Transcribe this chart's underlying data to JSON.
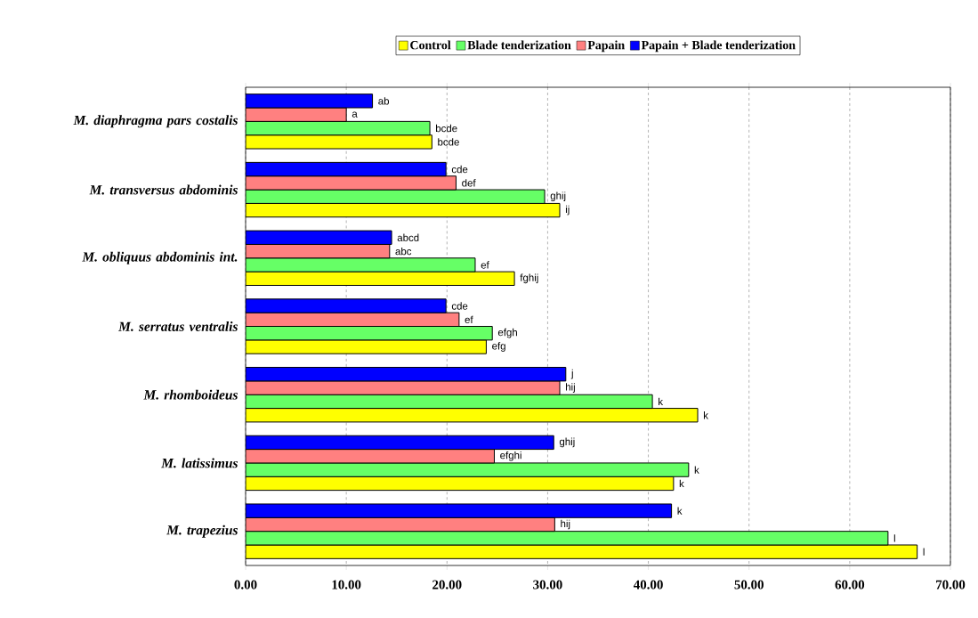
{
  "chart_data": {
    "type": "bar",
    "orientation": "horizontal",
    "categories": [
      "M. diaphragma pars costalis",
      "M. transversus abdominis",
      "M. obliquus abdominis int.",
      "M. serratus ventralis",
      "M. rhomboideus",
      "M. latissimus",
      "M. trapezius"
    ],
    "series": [
      {
        "name": "Control",
        "color": "#ffff00",
        "values": [
          18.5,
          31.2,
          26.7,
          23.9,
          44.9,
          42.5,
          66.7
        ],
        "value_labels": [
          "bcde",
          "ij",
          "fghij",
          "efg",
          "k",
          "k",
          "l"
        ]
      },
      {
        "name": "Blade tenderization",
        "color": "#66ff66",
        "values": [
          18.3,
          29.7,
          22.8,
          24.5,
          40.4,
          44.0,
          63.8
        ],
        "value_labels": [
          "bcde",
          "ghij",
          "ef",
          "efgh",
          "k",
          "k",
          "l"
        ]
      },
      {
        "name": "Papain",
        "color": "#ff8080",
        "values": [
          10.0,
          20.9,
          14.3,
          21.2,
          31.2,
          24.7,
          30.7
        ],
        "value_labels": [
          "a",
          "def",
          "abc",
          "ef",
          "hij",
          "efghi",
          "hij"
        ]
      },
      {
        "name": "Papain + Blade tenderization",
        "color": "#0000ff",
        "values": [
          12.6,
          19.9,
          14.5,
          19.9,
          31.8,
          30.6,
          42.3
        ],
        "value_labels": [
          "ab",
          "cde",
          "abcd",
          "cde",
          "j",
          "ghij",
          "k"
        ]
      }
    ],
    "xlim": [
      0,
      70
    ],
    "xticks": [
      {
        "value": 0,
        "label": "0.00"
      },
      {
        "value": 10,
        "label": "10.00"
      },
      {
        "value": 20,
        "label": "20.00"
      },
      {
        "value": 30,
        "label": "30.00"
      },
      {
        "value": 40,
        "label": "40.00"
      },
      {
        "value": 50,
        "label": "50.00"
      },
      {
        "value": 60,
        "label": "60.00"
      },
      {
        "value": 70,
        "label": "70.00"
      }
    ],
    "grid": "x",
    "legend": "top"
  }
}
